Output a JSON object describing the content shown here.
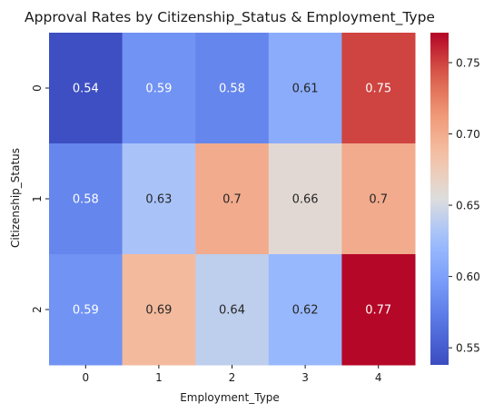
{
  "chart_data": {
    "type": "heatmap",
    "title": "Approval Rates by Citizenship_Status & Employment_Type",
    "xlabel": "Employment_Type",
    "ylabel": "Citizenship_Status",
    "x_categories": [
      "0",
      "1",
      "2",
      "3",
      "4"
    ],
    "y_categories": [
      "0",
      "1",
      "2"
    ],
    "values": [
      [
        0.54,
        0.59,
        0.58,
        0.61,
        0.75
      ],
      [
        0.58,
        0.63,
        0.7,
        0.66,
        0.7
      ],
      [
        0.59,
        0.69,
        0.64,
        0.62,
        0.77
      ]
    ],
    "annotations": [
      [
        "0.54",
        "0.59",
        "0.58",
        "0.61",
        "0.75"
      ],
      [
        "0.58",
        "0.63",
        "0.7",
        "0.66",
        "0.7"
      ],
      [
        "0.59",
        "0.69",
        "0.64",
        "0.62",
        "0.77"
      ]
    ],
    "colormap": "coolwarm",
    "vmin": 0.538,
    "vmax": 0.771,
    "colorbar_ticks": [
      "0.55",
      "0.60",
      "0.65",
      "0.70",
      "0.75"
    ],
    "colorbar_tick_values": [
      0.55,
      0.6,
      0.65,
      0.7,
      0.75
    ]
  }
}
